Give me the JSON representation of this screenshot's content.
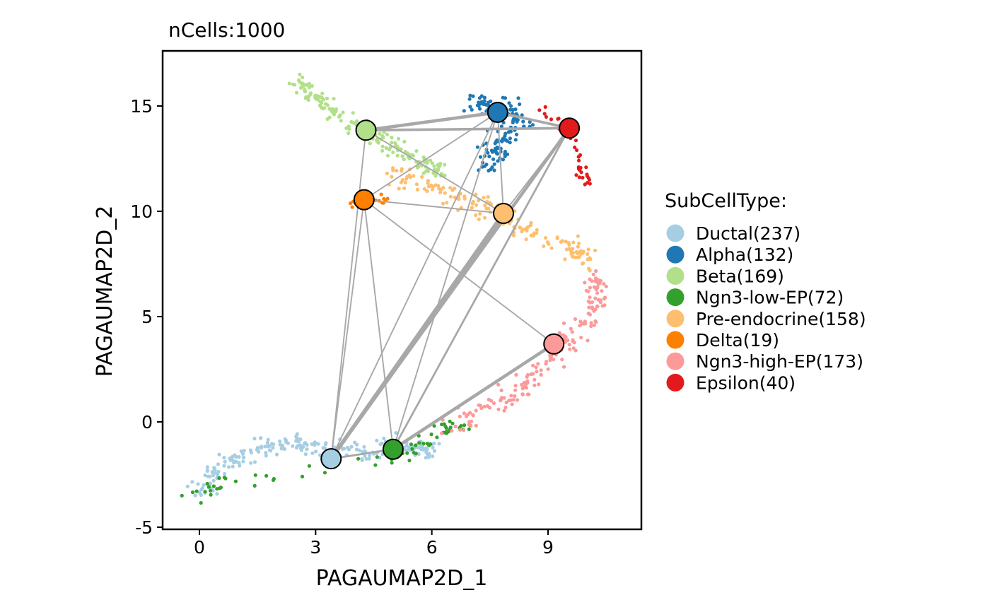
{
  "chart_data": {
    "type": "scatter",
    "title": "nCells:1000",
    "xlabel": "PAGAUMAP2D_1",
    "ylabel": "PAGAUMAP2D_2",
    "xlim": [
      -0.5,
      11.5
    ],
    "ylim": [
      -5,
      17.5
    ],
    "xticks": [
      0,
      3,
      6,
      9
    ],
    "yticks": [
      -5,
      0,
      5,
      10,
      15
    ],
    "legend_title": "SubCellType:",
    "legend_position": "right",
    "grid": false,
    "series": [
      {
        "name": "Ductal(237)",
        "color": "#A6CEE3",
        "count": 237
      },
      {
        "name": "Alpha(132)",
        "color": "#1F78B4",
        "count": 132
      },
      {
        "name": "Beta(169)",
        "color": "#B2DF8A",
        "count": 169
      },
      {
        "name": "Ngn3-low-EP(72)",
        "color": "#33A02C",
        "count": 72
      },
      {
        "name": "Pre-endocrine(158)",
        "color": "#FDBF6F",
        "count": 158
      },
      {
        "name": "Delta(19)",
        "color": "#FF7F00",
        "count": 19
      },
      {
        "name": "Ngn3-high-EP(173)",
        "color": "#FB9A99",
        "count": 173
      },
      {
        "name": "Epsilon(40)",
        "color": "#E31A1C",
        "count": 40
      }
    ],
    "paga_nodes": [
      {
        "cluster": "Ductal(237)",
        "x": 3.4,
        "y": -1.75
      },
      {
        "cluster": "Alpha(132)",
        "x": 7.7,
        "y": 14.7
      },
      {
        "cluster": "Beta(169)",
        "x": 4.3,
        "y": 13.85
      },
      {
        "cluster": "Ngn3-low-EP(72)",
        "x": 5.0,
        "y": -1.3
      },
      {
        "cluster": "Pre-endocrine(158)",
        "x": 7.85,
        "y": 9.9
      },
      {
        "cluster": "Delta(19)",
        "x": 4.25,
        "y": 10.55
      },
      {
        "cluster": "Ngn3-high-EP(173)",
        "x": 9.15,
        "y": 3.7
      },
      {
        "cluster": "Epsilon(40)",
        "x": 9.55,
        "y": 13.95
      }
    ],
    "paga_edges": [
      {
        "from": 2,
        "to": 1,
        "weight": 4
      },
      {
        "from": 2,
        "to": 7,
        "weight": 3
      },
      {
        "from": 1,
        "to": 7,
        "weight": 3
      },
      {
        "from": 2,
        "to": 4,
        "weight": 1
      },
      {
        "from": 2,
        "to": 0,
        "weight": 1
      },
      {
        "from": 5,
        "to": 4,
        "weight": 1
      },
      {
        "from": 5,
        "to": 1,
        "weight": 1
      },
      {
        "from": 5,
        "to": 0,
        "weight": 1
      },
      {
        "from": 5,
        "to": 3,
        "weight": 1
      },
      {
        "from": 5,
        "to": 6,
        "weight": 1
      },
      {
        "from": 4,
        "to": 1,
        "weight": 1
      },
      {
        "from": 4,
        "to": 7,
        "weight": 1
      },
      {
        "from": 4,
        "to": 0,
        "weight": 5
      },
      {
        "from": 0,
        "to": 7,
        "weight": 4
      },
      {
        "from": 0,
        "to": 1,
        "weight": 1
      },
      {
        "from": 0,
        "to": 3,
        "weight": 2
      },
      {
        "from": 3,
        "to": 6,
        "weight": 4
      },
      {
        "from": 3,
        "to": 7,
        "weight": 2
      },
      {
        "from": 3,
        "to": 1,
        "weight": 1
      }
    ]
  }
}
